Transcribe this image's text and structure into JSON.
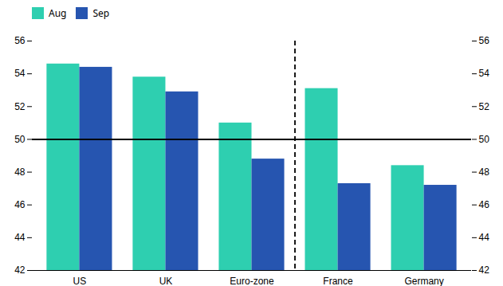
{
  "chart_data": {
    "type": "bar",
    "categories": [
      "US",
      "UK",
      "Euro-zone",
      "France",
      "Germany"
    ],
    "series": [
      {
        "name": "Aug",
        "color": "#2ecfb0",
        "values": [
          54.6,
          53.8,
          51.0,
          53.1,
          48.4
        ]
      },
      {
        "name": "Sep",
        "color": "#2655b0",
        "values": [
          54.4,
          52.9,
          48.8,
          47.3,
          47.2
        ]
      }
    ],
    "ylim": [
      42,
      56
    ],
    "yticks": [
      42,
      44,
      46,
      48,
      50,
      52,
      54,
      56
    ],
    "y2lim": [
      42,
      56
    ],
    "y2ticks": [
      42,
      44,
      46,
      48,
      50,
      52,
      54,
      56
    ],
    "hline": 50,
    "divider_after": "Euro-zone",
    "legend": "upper left",
    "grid": false
  }
}
